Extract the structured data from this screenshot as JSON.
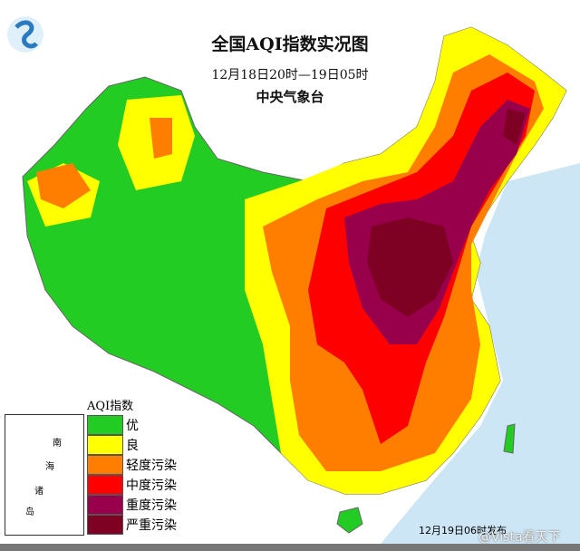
{
  "map": {
    "title": "全国AQI指数实况图",
    "time_range": "12月18日20时—19日05时",
    "organization": "中央气象台",
    "published": "12月19日06时发布",
    "watermark": "@Vista看天下",
    "inset_labels": [
      "南",
      "海",
      "诸",
      "岛"
    ],
    "legend": {
      "title": "AQI指数",
      "items": [
        {
          "label": "优",
          "color": "#22cc22"
        },
        {
          "label": "良",
          "color": "#ffff00"
        },
        {
          "label": "轻度污染",
          "color": "#ff7e00"
        },
        {
          "label": "中度污染",
          "color": "#ff0000"
        },
        {
          "label": "重度污染",
          "color": "#99004c"
        },
        {
          "label": "严重污染",
          "color": "#7e0023"
        }
      ]
    },
    "sea_color": "#cde6f5"
  }
}
